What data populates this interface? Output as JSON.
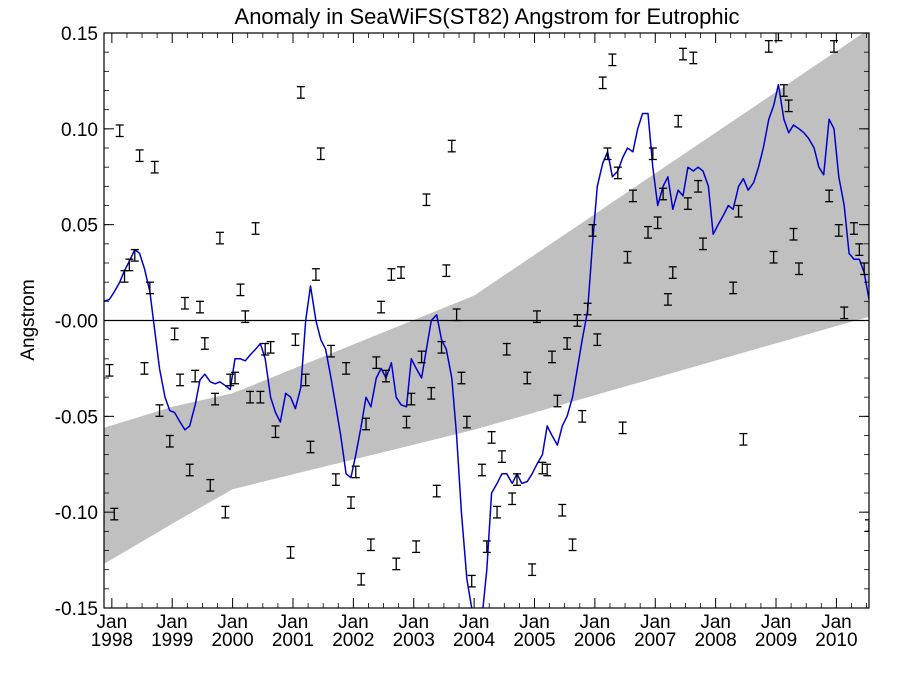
{
  "chart_data": {
    "type": "line",
    "title": "Anomaly in SeaWiFS(ST82) Angstrom for Eutrophic",
    "xlabel": "",
    "ylabel": "Angstrom",
    "xlim": [
      1997.87,
      2010.54
    ],
    "ylim": [
      -0.15,
      0.15
    ],
    "grid": false,
    "y_ticks": [
      {
        "value": 0.15,
        "label": "0.15"
      },
      {
        "value": 0.1,
        "label": "0.10"
      },
      {
        "value": 0.05,
        "label": "0.05"
      },
      {
        "value": 0.0,
        "label": "-0.00"
      },
      {
        "value": -0.05,
        "label": "-0.05"
      },
      {
        "value": -0.1,
        "label": "-0.10"
      },
      {
        "value": -0.15,
        "label": "-0.15"
      }
    ],
    "x_ticks": [
      {
        "value": 1998,
        "month": "Jan",
        "year": "1998"
      },
      {
        "value": 1999,
        "month": "Jan",
        "year": "1999"
      },
      {
        "value": 2000,
        "month": "Jan",
        "year": "2000"
      },
      {
        "value": 2001,
        "month": "Jan",
        "year": "2001"
      },
      {
        "value": 2002,
        "month": "Jan",
        "year": "2002"
      },
      {
        "value": 2003,
        "month": "Jan",
        "year": "2003"
      },
      {
        "value": 2004,
        "month": "Jan",
        "year": "2004"
      },
      {
        "value": 2005,
        "month": "Jan",
        "year": "2005"
      },
      {
        "value": 2006,
        "month": "Jan",
        "year": "2006"
      },
      {
        "value": 2007,
        "month": "Jan",
        "year": "2007"
      },
      {
        "value": 2008,
        "month": "Jan",
        "year": "2008"
      },
      {
        "value": 2009,
        "month": "Jan",
        "year": "2009"
      },
      {
        "value": 2010,
        "month": "Jan",
        "year": "2010"
      }
    ],
    "band": {
      "upper": [
        [
          1997.87,
          -0.056
        ],
        [
          1999.0,
          -0.045
        ],
        [
          2000.0,
          -0.038
        ],
        [
          2004.0,
          0.013
        ],
        [
          2010.54,
          0.152
        ]
      ],
      "lower": [
        [
          1997.87,
          -0.127
        ],
        [
          1999.0,
          -0.106
        ],
        [
          2000.0,
          -0.088
        ],
        [
          2004.0,
          -0.057
        ],
        [
          2010.54,
          0.002
        ]
      ],
      "color": "#c0c0c0"
    },
    "zero_line": 0.0,
    "line_color": "#0000cc",
    "errorbar_color": "#000000",
    "errorbar_halfwidth": 0.003,
    "smoothed": [
      [
        1997.87,
        0.01
      ],
      [
        1997.96,
        0.011
      ],
      [
        1998.04,
        0.015
      ],
      [
        1998.13,
        0.02
      ],
      [
        1998.21,
        0.026
      ],
      [
        1998.29,
        0.031
      ],
      [
        1998.38,
        0.037
      ],
      [
        1998.46,
        0.035
      ],
      [
        1998.54,
        0.027
      ],
      [
        1998.63,
        0.015
      ],
      [
        1998.71,
        -0.005
      ],
      [
        1998.79,
        -0.025
      ],
      [
        1998.88,
        -0.04
      ],
      [
        1998.96,
        -0.047
      ],
      [
        1999.04,
        -0.048
      ],
      [
        1999.13,
        -0.053
      ],
      [
        1999.21,
        -0.057
      ],
      [
        1999.29,
        -0.055
      ],
      [
        1999.38,
        -0.044
      ],
      [
        1999.46,
        -0.031
      ],
      [
        1999.54,
        -0.028
      ],
      [
        1999.63,
        -0.032
      ],
      [
        1999.71,
        -0.033
      ],
      [
        1999.79,
        -0.032
      ],
      [
        1999.88,
        -0.034
      ],
      [
        1999.96,
        -0.036
      ],
      [
        2000.04,
        -0.02
      ],
      [
        2000.13,
        -0.02
      ],
      [
        2000.21,
        -0.021
      ],
      [
        2000.29,
        -0.018
      ],
      [
        2000.38,
        -0.015
      ],
      [
        2000.46,
        -0.012
      ],
      [
        2000.54,
        -0.02
      ],
      [
        2000.63,
        -0.04
      ],
      [
        2000.71,
        -0.048
      ],
      [
        2000.79,
        -0.053
      ],
      [
        2000.88,
        -0.038
      ],
      [
        2000.96,
        -0.04
      ],
      [
        2001.04,
        -0.046
      ],
      [
        2001.13,
        -0.035
      ],
      [
        2001.21,
        0.0
      ],
      [
        2001.29,
        0.018
      ],
      [
        2001.38,
        0.0
      ],
      [
        2001.46,
        -0.01
      ],
      [
        2001.54,
        -0.015
      ],
      [
        2001.63,
        -0.03
      ],
      [
        2001.71,
        -0.045
      ],
      [
        2001.79,
        -0.06
      ],
      [
        2001.88,
        -0.08
      ],
      [
        2001.96,
        -0.082
      ],
      [
        2002.04,
        -0.07
      ],
      [
        2002.13,
        -0.055
      ],
      [
        2002.21,
        -0.04
      ],
      [
        2002.29,
        -0.045
      ],
      [
        2002.38,
        -0.03
      ],
      [
        2002.46,
        -0.025
      ],
      [
        2002.54,
        -0.03
      ],
      [
        2002.63,
        -0.022
      ],
      [
        2002.71,
        -0.04
      ],
      [
        2002.79,
        -0.044
      ],
      [
        2002.88,
        -0.045
      ],
      [
        2002.96,
        -0.02
      ],
      [
        2003.04,
        -0.025
      ],
      [
        2003.13,
        -0.03
      ],
      [
        2003.21,
        -0.015
      ],
      [
        2003.29,
        0.0
      ],
      [
        2003.38,
        0.003
      ],
      [
        2003.46,
        -0.01
      ],
      [
        2003.54,
        -0.015
      ],
      [
        2003.63,
        -0.03
      ],
      [
        2003.71,
        -0.06
      ],
      [
        2003.79,
        -0.1
      ],
      [
        2003.88,
        -0.135
      ],
      [
        2003.96,
        -0.15
      ],
      [
        2004.04,
        -0.155
      ],
      [
        2004.13,
        -0.155
      ],
      [
        2004.21,
        -0.13
      ],
      [
        2004.29,
        -0.09
      ],
      [
        2004.38,
        -0.085
      ],
      [
        2004.46,
        -0.08
      ],
      [
        2004.54,
        -0.08
      ],
      [
        2004.63,
        -0.085
      ],
      [
        2004.71,
        -0.08
      ],
      [
        2004.79,
        -0.085
      ],
      [
        2004.88,
        -0.084
      ],
      [
        2004.96,
        -0.08
      ],
      [
        2005.04,
        -0.075
      ],
      [
        2005.13,
        -0.07
      ],
      [
        2005.21,
        -0.055
      ],
      [
        2005.29,
        -0.06
      ],
      [
        2005.38,
        -0.065
      ],
      [
        2005.46,
        -0.055
      ],
      [
        2005.54,
        -0.05
      ],
      [
        2005.63,
        -0.04
      ],
      [
        2005.71,
        -0.025
      ],
      [
        2005.79,
        -0.01
      ],
      [
        2005.88,
        0.005
      ],
      [
        2005.96,
        0.04
      ],
      [
        2006.04,
        0.07
      ],
      [
        2006.13,
        0.082
      ],
      [
        2006.21,
        0.088
      ],
      [
        2006.29,
        0.075
      ],
      [
        2006.38,
        0.078
      ],
      [
        2006.46,
        0.085
      ],
      [
        2006.54,
        0.09
      ],
      [
        2006.63,
        0.088
      ],
      [
        2006.71,
        0.1
      ],
      [
        2006.79,
        0.108
      ],
      [
        2006.88,
        0.108
      ],
      [
        2006.96,
        0.08
      ],
      [
        2007.04,
        0.06
      ],
      [
        2007.13,
        0.07
      ],
      [
        2007.21,
        0.075
      ],
      [
        2007.29,
        0.058
      ],
      [
        2007.38,
        0.068
      ],
      [
        2007.46,
        0.065
      ],
      [
        2007.54,
        0.08
      ],
      [
        2007.63,
        0.078
      ],
      [
        2007.71,
        0.08
      ],
      [
        2007.79,
        0.078
      ],
      [
        2007.88,
        0.07
      ],
      [
        2007.96,
        0.045
      ],
      [
        2008.04,
        0.05
      ],
      [
        2008.13,
        0.055
      ],
      [
        2008.21,
        0.06
      ],
      [
        2008.29,
        0.058
      ],
      [
        2008.38,
        0.07
      ],
      [
        2008.46,
        0.074
      ],
      [
        2008.54,
        0.068
      ],
      [
        2008.63,
        0.072
      ],
      [
        2008.71,
        0.08
      ],
      [
        2008.79,
        0.09
      ],
      [
        2008.88,
        0.105
      ],
      [
        2008.96,
        0.112
      ],
      [
        2009.04,
        0.123
      ],
      [
        2009.13,
        0.105
      ],
      [
        2009.21,
        0.098
      ],
      [
        2009.29,
        0.102
      ],
      [
        2009.38,
        0.1
      ],
      [
        2009.46,
        0.098
      ],
      [
        2009.54,
        0.095
      ],
      [
        2009.63,
        0.09
      ],
      [
        2009.71,
        0.08
      ],
      [
        2009.79,
        0.076
      ],
      [
        2009.88,
        0.105
      ],
      [
        2009.96,
        0.1
      ],
      [
        2010.04,
        0.075
      ],
      [
        2010.13,
        0.06
      ],
      [
        2010.21,
        0.035
      ],
      [
        2010.29,
        0.032
      ],
      [
        2010.38,
        0.032
      ],
      [
        2010.46,
        0.025
      ],
      [
        2010.54,
        0.011
      ]
    ],
    "monthly_points": [
      [
        1997.96,
        -0.026
      ],
      [
        1998.04,
        -0.101
      ],
      [
        1998.13,
        0.099
      ],
      [
        1998.21,
        0.023
      ],
      [
        1998.29,
        0.029
      ],
      [
        1998.38,
        0.034
      ],
      [
        1998.46,
        0.086
      ],
      [
        1998.54,
        -0.025
      ],
      [
        1998.63,
        0.017
      ],
      [
        1998.71,
        0.08
      ],
      [
        1998.79,
        -0.047
      ],
      [
        1998.96,
        -0.063
      ],
      [
        1999.04,
        -0.007
      ],
      [
        1999.13,
        -0.031
      ],
      [
        1999.21,
        0.009
      ],
      [
        1999.29,
        -0.078
      ],
      [
        1999.38,
        -0.029
      ],
      [
        1999.46,
        0.007
      ],
      [
        1999.54,
        -0.012
      ],
      [
        1999.63,
        -0.086
      ],
      [
        1999.71,
        -0.041
      ],
      [
        1999.79,
        0.043
      ],
      [
        1999.88,
        -0.1
      ],
      [
        1999.96,
        -0.031
      ],
      [
        2000.04,
        -0.03
      ],
      [
        2000.13,
        0.016
      ],
      [
        2000.21,
        0.002
      ],
      [
        2000.29,
        -0.04
      ],
      [
        2000.38,
        0.048
      ],
      [
        2000.46,
        -0.04
      ],
      [
        2000.54,
        -0.015
      ],
      [
        2000.63,
        -0.014
      ],
      [
        2000.71,
        -0.058
      ],
      [
        2000.96,
        -0.121
      ],
      [
        2001.04,
        -0.01
      ],
      [
        2001.13,
        0.119
      ],
      [
        2001.21,
        -0.031
      ],
      [
        2001.29,
        -0.066
      ],
      [
        2001.38,
        0.024
      ],
      [
        2001.46,
        0.087
      ],
      [
        2001.63,
        -0.016
      ],
      [
        2001.71,
        -0.083
      ],
      [
        2001.88,
        -0.025
      ],
      [
        2001.96,
        -0.095
      ],
      [
        2002.04,
        -0.079
      ],
      [
        2002.13,
        -0.135
      ],
      [
        2002.21,
        -0.054
      ],
      [
        2002.29,
        -0.117
      ],
      [
        2002.38,
        -0.022
      ],
      [
        2002.46,
        0.007
      ],
      [
        2002.54,
        -0.029
      ],
      [
        2002.63,
        0.024
      ],
      [
        2002.71,
        -0.127
      ],
      [
        2002.79,
        0.025
      ],
      [
        2002.88,
        -0.053
      ],
      [
        2002.96,
        -0.041
      ],
      [
        2003.04,
        -0.118
      ],
      [
        2003.13,
        -0.019
      ],
      [
        2003.21,
        0.063
      ],
      [
        2003.29,
        -0.038
      ],
      [
        2003.38,
        -0.089
      ],
      [
        2003.46,
        -0.014
      ],
      [
        2003.54,
        0.026
      ],
      [
        2003.63,
        0.091
      ],
      [
        2003.71,
        0.003
      ],
      [
        2003.79,
        -0.03
      ],
      [
        2003.88,
        -0.053
      ],
      [
        2003.96,
        -0.136
      ],
      [
        2004.13,
        -0.078
      ],
      [
        2004.21,
        -0.118
      ],
      [
        2004.29,
        -0.061
      ],
      [
        2004.38,
        -0.1
      ],
      [
        2004.46,
        -0.071
      ],
      [
        2004.54,
        -0.015
      ],
      [
        2004.63,
        -0.093
      ],
      [
        2004.71,
        -0.083
      ],
      [
        2004.88,
        -0.03
      ],
      [
        2004.96,
        -0.13
      ],
      [
        2005.04,
        0.002
      ],
      [
        2005.13,
        -0.077
      ],
      [
        2005.21,
        -0.078
      ],
      [
        2005.29,
        -0.019
      ],
      [
        2005.38,
        -0.042
      ],
      [
        2005.46,
        -0.099
      ],
      [
        2005.54,
        -0.012
      ],
      [
        2005.63,
        -0.117
      ],
      [
        2005.71,
        0.0
      ],
      [
        2005.79,
        -0.05
      ],
      [
        2005.88,
        0.006
      ],
      [
        2005.96,
        0.047
      ],
      [
        2006.04,
        -0.01
      ],
      [
        2006.13,
        0.124
      ],
      [
        2006.21,
        0.087
      ],
      [
        2006.29,
        0.136
      ],
      [
        2006.38,
        0.077
      ],
      [
        2006.46,
        -0.056
      ],
      [
        2006.54,
        0.033
      ],
      [
        2006.63,
        0.065
      ],
      [
        2006.88,
        0.046
      ],
      [
        2006.96,
        0.087
      ],
      [
        2007.04,
        0.051
      ],
      [
        2007.13,
        0.066
      ],
      [
        2007.21,
        0.011
      ],
      [
        2007.29,
        0.025
      ],
      [
        2007.38,
        0.104
      ],
      [
        2007.46,
        0.139
      ],
      [
        2007.54,
        0.061
      ],
      [
        2007.63,
        0.137
      ],
      [
        2007.71,
        0.07
      ],
      [
        2007.79,
        0.04
      ],
      [
        2008.29,
        0.017
      ],
      [
        2008.38,
        0.057
      ],
      [
        2008.46,
        -0.062
      ],
      [
        2008.88,
        0.143
      ],
      [
        2008.96,
        0.033
      ],
      [
        2009.04,
        0.149
      ],
      [
        2009.13,
        0.12
      ],
      [
        2009.21,
        0.112
      ],
      [
        2009.29,
        0.045
      ],
      [
        2009.38,
        0.027
      ],
      [
        2009.88,
        0.065
      ],
      [
        2009.96,
        0.143
      ],
      [
        2010.04,
        0.047
      ],
      [
        2010.13,
        0.004
      ],
      [
        2010.29,
        0.048
      ],
      [
        2010.38,
        0.037
      ],
      [
        2010.46,
        0.027
      ],
      [
        2010.54,
        -0.107
      ]
    ]
  }
}
